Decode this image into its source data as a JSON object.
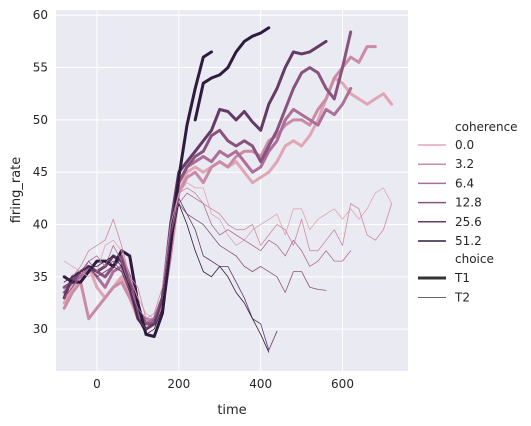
{
  "chart_data": {
    "type": "line",
    "xlabel": "time",
    "ylabel": "firing_rate",
    "xlim": [
      -100,
      760
    ],
    "ylim": [
      26,
      60.5
    ],
    "x_ticks": [
      0,
      200,
      400,
      600
    ],
    "y_ticks": [
      30,
      35,
      40,
      45,
      50,
      55,
      60
    ],
    "grid": true,
    "background": "#eaeaf2",
    "legend": {
      "placement": "right",
      "hue_title": "coherence",
      "style_title": "choice",
      "hue_entries": [
        {
          "label": "0.0",
          "color": "#e0a6b4"
        },
        {
          "label": "3.2",
          "color": "#c98ba6"
        },
        {
          "label": "6.4",
          "color": "#ad6f99"
        },
        {
          "label": "12.8",
          "color": "#8a537e"
        },
        {
          "label": "25.6",
          "color": "#643b66"
        },
        {
          "label": "51.2",
          "color": "#2f1b3f"
        }
      ],
      "style_entries": [
        {
          "label": "T1",
          "linewidth": 3
        },
        {
          "label": "T2",
          "linewidth": 0.8
        }
      ]
    },
    "series": [
      {
        "coherence": "0.0",
        "choice": "T1",
        "color": "#e0a6b4",
        "width": 3,
        "x": [
          -80,
          -60,
          -40,
          -20,
          0,
          20,
          40,
          60,
          80,
          100,
          120,
          140,
          160,
          180,
          200,
          220,
          240,
          260,
          280,
          300,
          320,
          340,
          360,
          380,
          400,
          420,
          440,
          460,
          480,
          500,
          520,
          540,
          560,
          580,
          600,
          620,
          640,
          660,
          680,
          700,
          720
        ],
        "y": [
          32.5,
          34,
          35,
          36,
          34,
          33,
          34,
          35,
          33,
          31,
          30.5,
          30.5,
          32,
          38,
          43,
          45,
          45.5,
          45,
          45.5,
          46,
          45.5,
          46,
          45,
          44,
          44.5,
          45,
          46,
          47.5,
          48,
          47.5,
          48.5,
          50,
          52,
          54,
          53.5,
          52.5,
          52,
          51.5,
          52,
          52.5,
          51.5
        ]
      },
      {
        "coherence": "3.2",
        "choice": "T1",
        "color": "#c98ba6",
        "width": 3,
        "x": [
          -80,
          -60,
          -40,
          -20,
          0,
          20,
          40,
          60,
          80,
          100,
          120,
          140,
          160,
          180,
          200,
          220,
          240,
          260,
          280,
          300,
          320,
          340,
          360,
          380,
          400,
          420,
          440,
          460,
          480,
          500,
          520,
          540,
          560,
          580,
          600,
          620,
          640,
          660,
          680
        ],
        "y": [
          32,
          33.5,
          34.5,
          31,
          32,
          33,
          34,
          34.5,
          33,
          31.5,
          31,
          30.5,
          32,
          37,
          43,
          44.5,
          45,
          44,
          45.5,
          46,
          45.5,
          46.5,
          47,
          47,
          46.5,
          48,
          48.5,
          49.5,
          50,
          50,
          49.5,
          51,
          52,
          54,
          55,
          56,
          55.5,
          57,
          57
        ]
      },
      {
        "coherence": "6.4",
        "choice": "T1",
        "color": "#ad6f99",
        "width": 3,
        "x": [
          -80,
          -60,
          -40,
          -20,
          0,
          20,
          40,
          60,
          80,
          100,
          120,
          140,
          160,
          180,
          200,
          220,
          240,
          260,
          280,
          300,
          320,
          340,
          360,
          380,
          400,
          420,
          440,
          460,
          480,
          500,
          520,
          540,
          560,
          580,
          600,
          620
        ],
        "y": [
          33.5,
          34.5,
          35,
          36,
          35,
          34,
          35.5,
          36,
          34,
          31.5,
          30.5,
          31,
          33,
          38,
          44,
          45.5,
          46,
          46.5,
          46,
          47,
          46.5,
          47,
          46,
          45,
          45.5,
          47,
          48,
          50,
          51,
          50.5,
          50,
          49.5,
          51,
          50.5,
          51.5,
          53
        ]
      },
      {
        "coherence": "12.8",
        "choice": "T1",
        "color": "#8a537e",
        "width": 3,
        "x": [
          -80,
          -60,
          -40,
          -20,
          0,
          20,
          40,
          60,
          80,
          100,
          120,
          140,
          160,
          180,
          200,
          220,
          240,
          260,
          280,
          300,
          320,
          340,
          360,
          380,
          400,
          420,
          440,
          460,
          480,
          500,
          520,
          540,
          560,
          580,
          600,
          620
        ],
        "y": [
          34,
          34.5,
          35.5,
          36,
          35.5,
          35,
          36,
          37,
          35,
          32,
          30.5,
          30.5,
          33,
          39,
          44,
          45.5,
          46.5,
          47,
          48.5,
          49,
          48,
          47.5,
          48,
          47.5,
          46,
          47.5,
          49,
          51,
          53,
          54.5,
          55,
          54.5,
          53,
          52,
          55,
          58.4
        ]
      },
      {
        "coherence": "25.6",
        "choice": "T1",
        "color": "#643b66",
        "width": 3,
        "x": [
          -80,
          -60,
          -40,
          -20,
          0,
          20,
          40,
          60,
          80,
          100,
          120,
          140,
          160,
          180,
          200,
          220,
          240,
          260,
          280,
          300,
          320,
          340,
          360,
          380,
          400,
          420,
          440,
          460,
          480,
          500,
          520,
          540,
          560
        ],
        "y": [
          33,
          35,
          35.5,
          36,
          35.5,
          36,
          37,
          36.5,
          34,
          31,
          30,
          30.5,
          33,
          40,
          45,
          46,
          47,
          48,
          49,
          51,
          50.8,
          50,
          50.8,
          49.8,
          49,
          51.5,
          53,
          55,
          56.5,
          56.3,
          56.5,
          57,
          57.5
        ]
      },
      {
        "coherence": "51.2",
        "choice": "T1",
        "color": "#2f1b3f",
        "width": 3,
        "x": [
          -80,
          -60,
          -40,
          -20,
          0,
          20,
          40,
          60,
          80,
          100,
          120,
          140,
          160,
          180,
          200,
          220,
          240,
          260,
          280
        ],
        "y": [
          35,
          34.5,
          34.5,
          35.5,
          36.5,
          36.5,
          36,
          37.5,
          37,
          32.5,
          29.5,
          29.3,
          31.5,
          38,
          44.5,
          49.5,
          53,
          56,
          56.5
        ]
      },
      {
        "coherence": "51.2",
        "choice": "T1",
        "color": "#2f1b3f",
        "width": 3,
        "x": [
          240,
          260,
          280,
          300,
          320,
          340,
          360,
          380,
          400,
          420
        ],
        "y": [
          50,
          53.5,
          54,
          54.3,
          55,
          56.5,
          57.5,
          58,
          58.3,
          58.8
        ]
      },
      {
        "coherence": "0.0",
        "choice": "T2",
        "color": "#e0a6b4",
        "width": 0.8,
        "x": [
          -80,
          -60,
          -40,
          -20,
          0,
          20,
          40,
          60,
          80,
          100,
          120,
          140,
          160,
          180,
          200,
          220,
          240,
          260,
          280,
          300,
          320,
          340,
          360,
          380,
          400,
          420,
          440,
          460,
          480,
          500,
          520,
          540,
          560,
          580,
          600,
          620,
          640,
          660,
          680,
          700,
          720
        ],
        "y": [
          36.5,
          36,
          35.5,
          35,
          35.5,
          38,
          38.5,
          37.5,
          35,
          33,
          31.5,
          31,
          33,
          39,
          43,
          44,
          43.5,
          43.5,
          41,
          40.5,
          39,
          38,
          38.5,
          39.5,
          40,
          40.5,
          41,
          39,
          41.5,
          41.5,
          39.5,
          40.5,
          41,
          41.5,
          40.5,
          41.5,
          40.5,
          41.5,
          43,
          43.5,
          42
        ]
      },
      {
        "coherence": "3.2",
        "choice": "T2",
        "color": "#c98ba6",
        "width": 0.8,
        "x": [
          -80,
          -60,
          -40,
          -20,
          0,
          20,
          40,
          60,
          80,
          100,
          120,
          140,
          160,
          180,
          200,
          220,
          240,
          260,
          280,
          300,
          320,
          340,
          360,
          380,
          400,
          420,
          440,
          460,
          480,
          500,
          520,
          540,
          560,
          580,
          600,
          620,
          640,
          660,
          680,
          700,
          720
        ],
        "y": [
          34.5,
          35,
          36,
          37.5,
          38,
          38.5,
          40.5,
          38,
          35,
          34,
          31,
          31.5,
          34,
          40,
          43,
          43.5,
          43,
          42,
          41.5,
          41,
          40,
          39.5,
          39.5,
          40,
          38,
          39,
          40,
          39.5,
          38,
          40.5,
          37.5,
          37.5,
          38.5,
          39.5,
          38,
          42,
          41.5,
          39,
          38.5,
          39.5,
          42
        ]
      },
      {
        "coherence": "6.4",
        "choice": "T2",
        "color": "#ad6f99",
        "width": 0.8,
        "x": [
          -80,
          -60,
          -40,
          -20,
          0,
          20,
          40,
          60,
          80,
          100,
          120,
          140,
          160,
          180,
          200,
          220,
          240,
          260,
          280,
          300,
          320,
          340,
          360,
          380,
          400,
          420,
          440,
          460,
          480,
          500,
          520,
          540,
          560,
          580,
          600,
          620
        ],
        "y": [
          33,
          34,
          35,
          36.5,
          37,
          36,
          38,
          36.5,
          34,
          32,
          31,
          31,
          33,
          39,
          42,
          43,
          42.5,
          42,
          40,
          39,
          39.5,
          39,
          38.5,
          38,
          37.5,
          38.5,
          38,
          37,
          38.5,
          37.5,
          36,
          36.5,
          37.5,
          36.5,
          36.5,
          37.5
        ]
      },
      {
        "coherence": "12.8",
        "choice": "T2",
        "color": "#8a537e",
        "width": 0.8,
        "x": [
          -80,
          -60,
          -40,
          -20,
          0,
          20,
          40,
          60,
          80,
          100,
          120,
          140,
          160,
          180,
          200,
          220,
          240,
          260,
          280,
          300,
          320,
          340,
          360,
          380,
          400,
          420,
          440,
          460,
          480,
          500,
          520,
          540,
          560
        ],
        "y": [
          33,
          34,
          35.5,
          36.5,
          35.5,
          36,
          36.5,
          35.5,
          34,
          31,
          30,
          31,
          33,
          39,
          42,
          41,
          40.5,
          40,
          39,
          38,
          37.5,
          37,
          36,
          35.5,
          36,
          35.5,
          35,
          33.5,
          35.5,
          35.5,
          34,
          33.8,
          33.7
        ]
      },
      {
        "coherence": "25.6",
        "choice": "T2",
        "color": "#643b66",
        "width": 0.8,
        "x": [
          -80,
          -60,
          -40,
          -20,
          0,
          20,
          40,
          60,
          80,
          100,
          120,
          140,
          160,
          180,
          200,
          220,
          240,
          260,
          280,
          300,
          320,
          340,
          360,
          380,
          400,
          420,
          440
        ],
        "y": [
          33.5,
          34.5,
          35.5,
          36,
          35,
          35.5,
          36,
          35.5,
          33.5,
          31,
          30,
          30.5,
          33,
          39,
          42.5,
          41,
          39.5,
          37,
          36.5,
          36,
          36,
          34.5,
          33,
          31,
          30.5,
          28,
          29.8
        ]
      },
      {
        "coherence": "51.2",
        "choice": "T2",
        "color": "#2f1b3f",
        "width": 0.8,
        "x": [
          -80,
          -60,
          -40,
          -20,
          0,
          20,
          40,
          60,
          80,
          100,
          120,
          140,
          160,
          180,
          200,
          220,
          240,
          260,
          280,
          300,
          320,
          340,
          360,
          380,
          400,
          420
        ],
        "y": [
          34.5,
          35,
          35.5,
          36,
          36,
          36.5,
          37,
          36,
          34,
          31,
          29.5,
          30,
          32,
          38,
          42,
          40,
          37.5,
          35.5,
          35,
          36,
          35,
          33.5,
          32.5,
          31,
          29.5,
          27.8
        ]
      }
    ]
  }
}
